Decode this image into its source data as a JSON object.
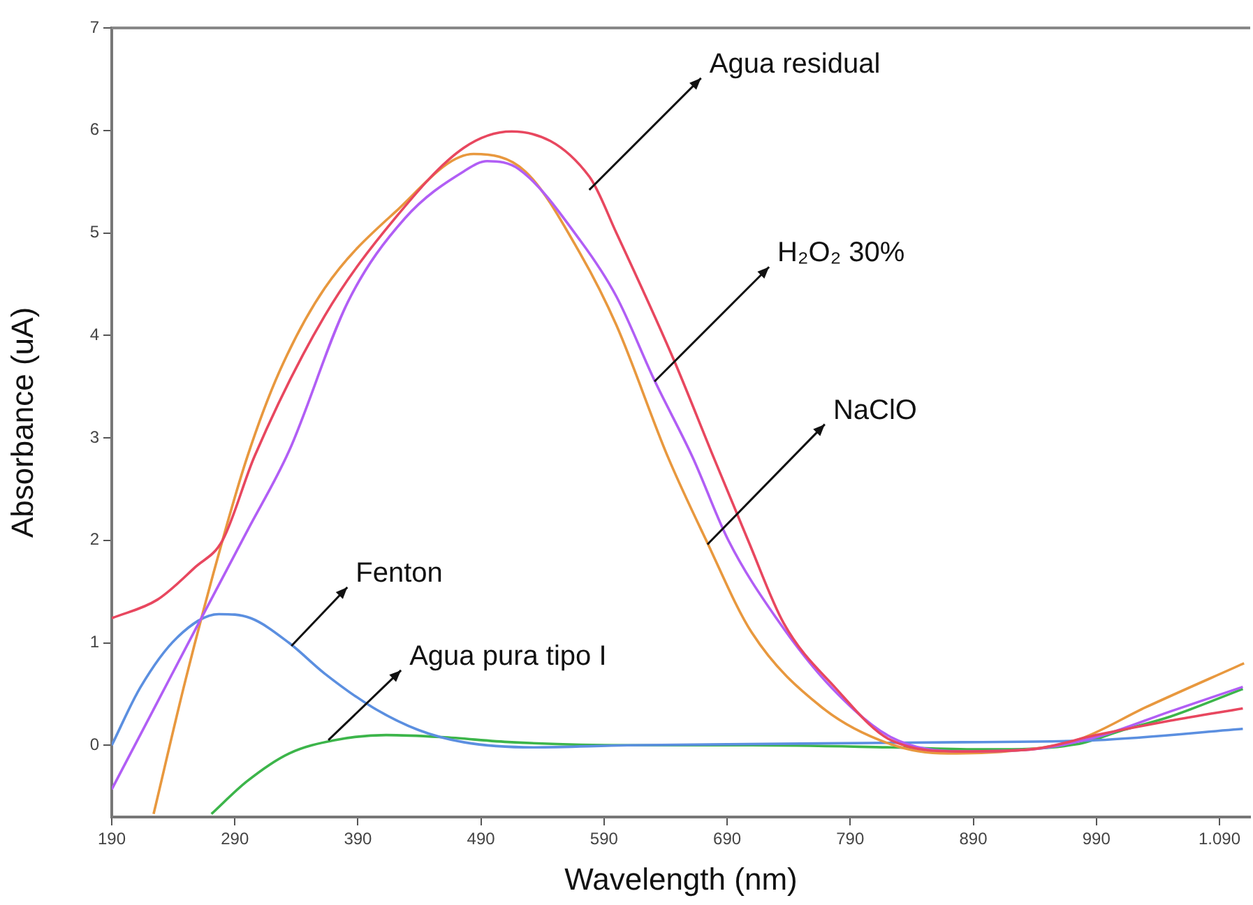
{
  "chart_data": {
    "type": "line",
    "xlabel": "Wavelength (nm)",
    "ylabel": "Absorbance (uA)",
    "xlim": [
      190,
      1115
    ],
    "ylim": [
      -0.7,
      7
    ],
    "xticks": [
      190,
      290,
      390,
      490,
      590,
      690,
      790,
      890,
      990,
      {
        "value": 1090,
        "label": "1.090"
      }
    ],
    "yticks": [
      0,
      1,
      2,
      3,
      4,
      5,
      6,
      7
    ],
    "grid": false,
    "legend": false,
    "marker": "none",
    "line_style": "solid",
    "series": [
      {
        "color": "#e8475f",
        "x": [
          190,
          227,
          258,
          280,
          306,
          363,
          420,
          476,
          515,
          578,
          600,
          646,
          679,
          707,
          736,
          778,
          823,
          880,
          937,
          990,
          1050,
          1109
        ],
        "values": [
          1.24,
          1.42,
          1.74,
          2.0,
          2.82,
          4.19,
          5.14,
          5.83,
          5.99,
          5.55,
          5.0,
          3.78,
          2.81,
          2.0,
          1.19,
          0.56,
          0.05,
          -0.06,
          -0.04,
          0.1,
          0.24,
          0.36
        ]
      },
      {
        "color": "#b15ef5",
        "x": [
          190,
          224,
          261,
          300,
          334,
          382,
          428,
          476,
          495,
          521,
          571,
          600,
          631,
          662,
          691,
          730,
          775,
          823,
          880,
          937,
          990,
          1050,
          1109
        ],
        "values": [
          -0.43,
          0.35,
          1.2,
          2.09,
          2.87,
          4.33,
          5.14,
          5.6,
          5.7,
          5.62,
          4.92,
          4.38,
          3.56,
          2.81,
          2.0,
          1.24,
          0.56,
          0.08,
          -0.06,
          -0.04,
          0.08,
          0.33,
          0.57
        ]
      },
      {
        "color": "#e8983e",
        "x": [
          224,
          250,
          280,
          300,
          326,
          363,
          420,
          484,
          526,
          571,
          600,
          642,
          673,
          710,
          767,
          823,
          869,
          917,
          974,
          1030,
          1110
        ],
        "values": [
          -0.67,
          0.64,
          2.0,
          2.81,
          3.64,
          4.46,
          5.2,
          5.77,
          5.6,
          4.79,
          4.1,
          2.81,
          2.0,
          1.1,
          0.37,
          0.01,
          -0.08,
          -0.06,
          0.05,
          0.37,
          0.8
        ]
      },
      {
        "color": "#5b8fe0",
        "x": [
          190,
          213,
          243,
          277,
          303,
          334,
          363,
          402,
          439,
          476,
          533,
          609,
          880,
          990,
          1109
        ],
        "values": [
          0.0,
          0.56,
          1.05,
          1.28,
          1.24,
          1.0,
          0.7,
          0.37,
          0.15,
          0.03,
          -0.02,
          0.0,
          0.03,
          0.05,
          0.16
        ]
      },
      {
        "color": "#3cb54a",
        "x": [
          271,
          300,
          334,
          371,
          413,
          458,
          515,
          609,
          710,
          823,
          899,
          974,
          1012,
          1050,
          1109
        ],
        "values": [
          -0.67,
          -0.35,
          -0.08,
          0.05,
          0.1,
          0.08,
          0.03,
          0.0,
          0.0,
          -0.02,
          -0.04,
          0.01,
          0.15,
          0.28,
          0.55
        ]
      }
    ],
    "annotations": [
      {
        "text": "Agua residual",
        "x": 578,
        "y": 5.42
      },
      {
        "text": "H₂O₂ 30%",
        "x": 631,
        "y": 3.55
      },
      {
        "text": "NaClO",
        "x": 674,
        "y": 1.96
      },
      {
        "text": "Fenton",
        "x": 336,
        "y": 0.97
      },
      {
        "text": "Agua pura tipo I",
        "x": 366,
        "y": 0.05
      }
    ]
  }
}
